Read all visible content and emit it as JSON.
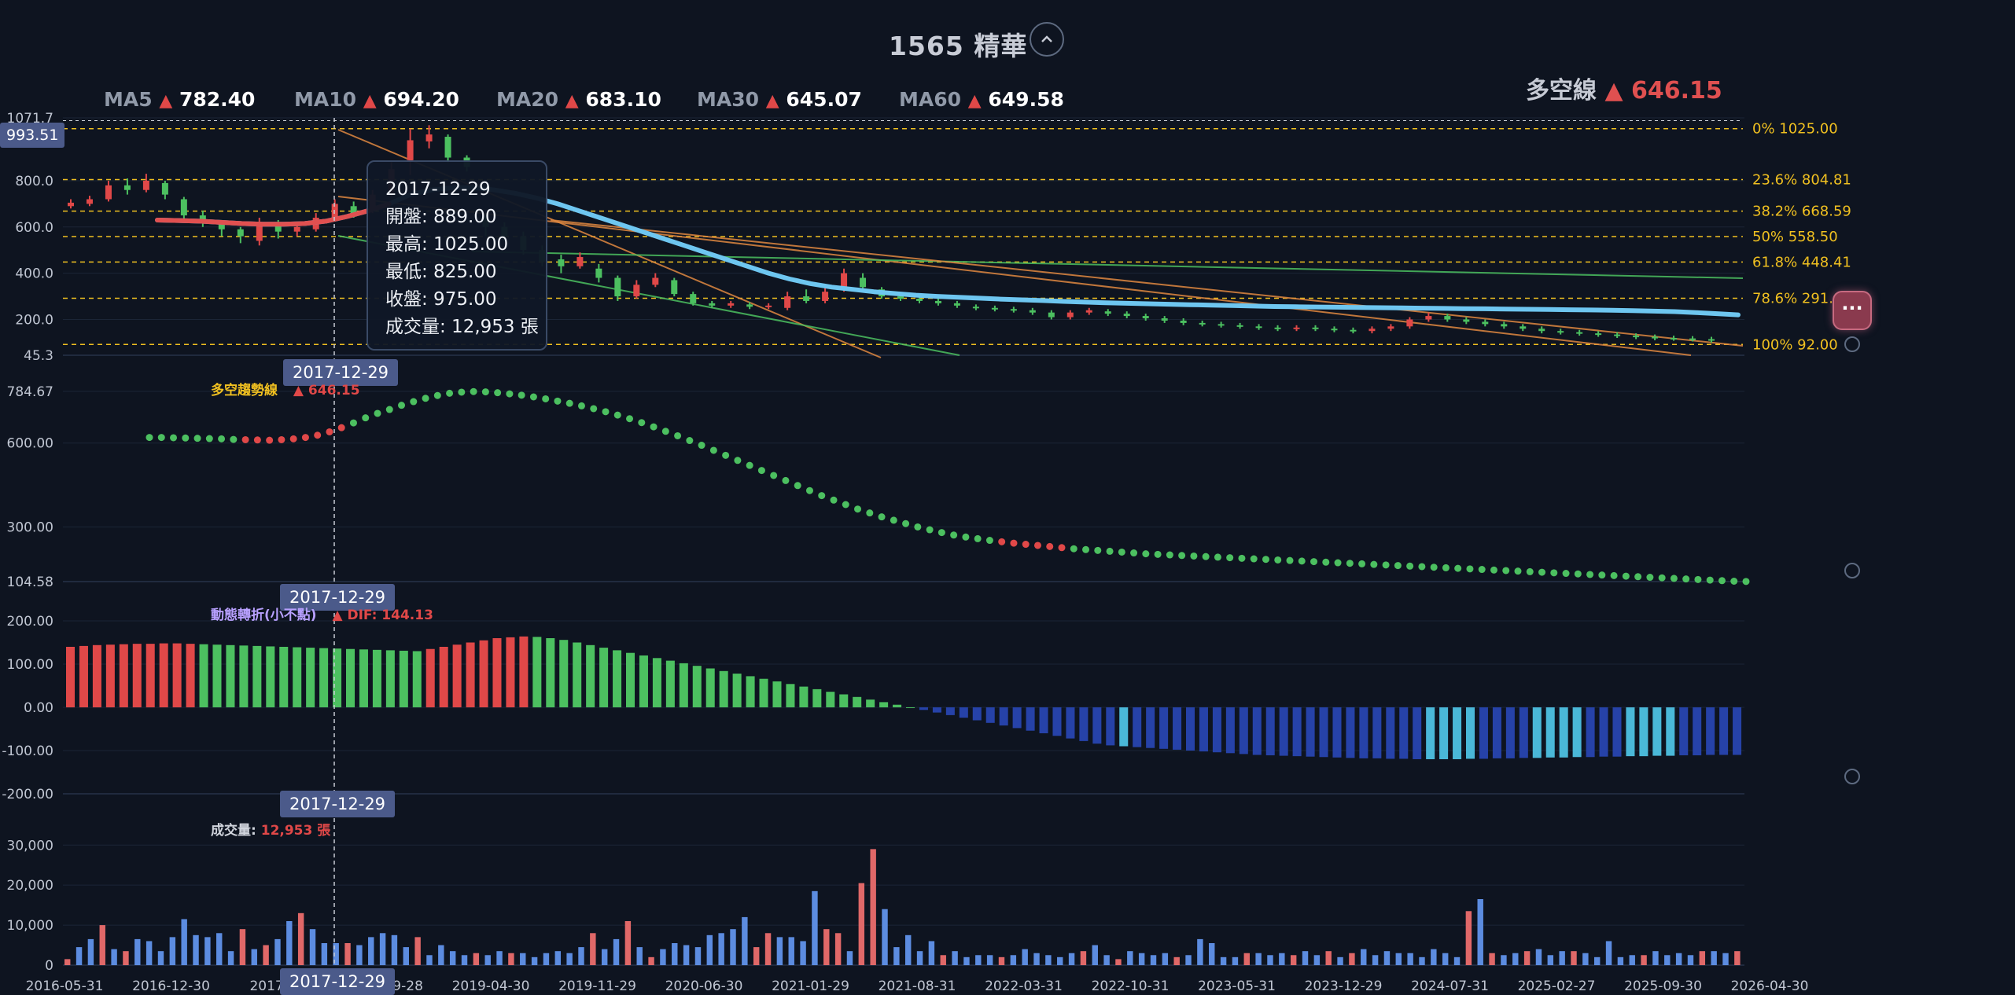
{
  "header": {
    "title": "1565 精華"
  },
  "ma": [
    {
      "name": "MA5",
      "value": "782.40",
      "color": "#e04848"
    },
    {
      "name": "MA10",
      "value": "694.20",
      "color": "#e04848"
    },
    {
      "name": "MA20",
      "value": "683.10",
      "color": "#e04848"
    },
    {
      "name": "MA30",
      "value": "645.07",
      "color": "#e04848"
    },
    {
      "name": "MA60",
      "value": "649.58",
      "color": "#e04848"
    }
  ],
  "bull_bear_line": {
    "label": "多空線",
    "value": "646.15"
  },
  "current_price_tag": "993.51",
  "tooltip": {
    "date": "2017-12-29",
    "open": "開盤: 889.00",
    "high": "最高: 1025.00",
    "low": "最低: 825.00",
    "close": "收盤: 975.00",
    "volume": "成交量: 12,953 張"
  },
  "crosshair_date": "2017-12-29",
  "panels": {
    "trend": {
      "label": "多空趨勢線",
      "value": "646.15"
    },
    "momentum": {
      "label": "動態轉折(小不點)",
      "value": "DIF: 144.13"
    },
    "volume": {
      "label": "成交量:",
      "value": "12,953 張"
    }
  },
  "colors": {
    "up": "#e04848",
    "down": "#4cc060",
    "background": "#0e1420",
    "fib": "#f0c020",
    "ma_line": "#6ec6f0"
  },
  "chart_data": [
    {
      "type": "candlestick",
      "title": "價格",
      "y_ticks": [
        "1071.7",
        "800.0",
        "600.0",
        "400.0",
        "200.0",
        "45.3"
      ],
      "ylim": [
        45.3,
        1071.7
      ],
      "fibonacci": [
        {
          "label": "0%",
          "value": "1025.00"
        },
        {
          "label": "23.6%",
          "value": "804.81"
        },
        {
          "label": "38.2%",
          "value": "668.59"
        },
        {
          "label": "50%",
          "value": "558.50"
        },
        {
          "label": "61.8%",
          "value": "448.41"
        },
        {
          "label": "78.6%",
          "value": "291.88"
        },
        {
          "label": "100%",
          "value": "92.00"
        }
      ],
      "candles": [
        {
          "o": 690,
          "c": 705,
          "h": 720,
          "l": 680
        },
        {
          "o": 700,
          "c": 720,
          "h": 735,
          "l": 690
        },
        {
          "o": 720,
          "c": 780,
          "h": 800,
          "l": 710
        },
        {
          "o": 780,
          "c": 760,
          "h": 810,
          "l": 740
        },
        {
          "o": 760,
          "c": 800,
          "h": 830,
          "l": 750
        },
        {
          "o": 790,
          "c": 740,
          "h": 800,
          "l": 720
        },
        {
          "o": 720,
          "c": 650,
          "h": 730,
          "l": 620
        },
        {
          "o": 650,
          "c": 620,
          "h": 670,
          "l": 600
        },
        {
          "o": 620,
          "c": 590,
          "h": 630,
          "l": 560
        },
        {
          "o": 590,
          "c": 560,
          "h": 600,
          "l": 530
        },
        {
          "o": 540,
          "c": 620,
          "h": 640,
          "l": 520
        },
        {
          "o": 610,
          "c": 580,
          "h": 630,
          "l": 550
        },
        {
          "o": 580,
          "c": 600,
          "h": 620,
          "l": 560
        },
        {
          "o": 590,
          "c": 640,
          "h": 660,
          "l": 580
        },
        {
          "o": 640,
          "c": 700,
          "h": 720,
          "l": 630
        },
        {
          "o": 690,
          "c": 660,
          "h": 710,
          "l": 640
        },
        {
          "o": 670,
          "c": 740,
          "h": 760,
          "l": 660
        },
        {
          "o": 740,
          "c": 850,
          "h": 880,
          "l": 730
        },
        {
          "o": 889,
          "c": 975,
          "h": 1025,
          "l": 825
        },
        {
          "o": 970,
          "c": 1000,
          "h": 1040,
          "l": 940
        },
        {
          "o": 990,
          "c": 900,
          "h": 1000,
          "l": 880
        },
        {
          "o": 900,
          "c": 860,
          "h": 910,
          "l": 840
        }
      ],
      "tail": [
        {
          "o": 640,
          "c": 600,
          "h": 650,
          "l": 560
        },
        {
          "o": 600,
          "c": 560,
          "h": 620,
          "l": 540
        },
        {
          "o": 560,
          "c": 500,
          "h": 580,
          "l": 480
        },
        {
          "o": 500,
          "c": 450,
          "h": 520,
          "l": 430
        },
        {
          "o": 460,
          "c": 430,
          "h": 480,
          "l": 400
        },
        {
          "o": 430,
          "c": 470,
          "h": 490,
          "l": 420
        },
        {
          "o": 420,
          "c": 380,
          "h": 440,
          "l": 360
        },
        {
          "o": 380,
          "c": 300,
          "h": 390,
          "l": 280
        },
        {
          "o": 300,
          "c": 350,
          "h": 370,
          "l": 290
        },
        {
          "o": 350,
          "c": 380,
          "h": 400,
          "l": 340
        },
        {
          "o": 370,
          "c": 310,
          "h": 380,
          "l": 300
        },
        {
          "o": 310,
          "c": 270,
          "h": 320,
          "l": 260
        },
        {
          "o": 270,
          "c": 260,
          "h": 280,
          "l": 250
        },
        {
          "o": 260,
          "c": 270,
          "h": 280,
          "l": 250
        },
        {
          "o": 265,
          "c": 255,
          "h": 275,
          "l": 245
        },
        {
          "o": 255,
          "c": 260,
          "h": 270,
          "l": 245
        },
        {
          "o": 250,
          "c": 300,
          "h": 320,
          "l": 240
        },
        {
          "o": 300,
          "c": 280,
          "h": 330,
          "l": 270
        },
        {
          "o": 280,
          "c": 320,
          "h": 350,
          "l": 270
        },
        {
          "o": 330,
          "c": 400,
          "h": 420,
          "l": 320
        },
        {
          "o": 380,
          "c": 340,
          "h": 400,
          "l": 320
        },
        {
          "o": 330,
          "c": 300,
          "h": 340,
          "l": 290
        },
        {
          "o": 300,
          "c": 290,
          "h": 310,
          "l": 280
        },
        {
          "o": 290,
          "c": 280,
          "h": 300,
          "l": 270
        },
        {
          "o": 280,
          "c": 270,
          "h": 300,
          "l": 260
        },
        {
          "o": 270,
          "c": 260,
          "h": 280,
          "l": 250
        },
        {
          "o": 255,
          "c": 250,
          "h": 265,
          "l": 240
        },
        {
          "o": 250,
          "c": 245,
          "h": 260,
          "l": 235
        },
        {
          "o": 245,
          "c": 240,
          "h": 255,
          "l": 230
        },
        {
          "o": 240,
          "c": 230,
          "h": 250,
          "l": 220
        },
        {
          "o": 230,
          "c": 210,
          "h": 240,
          "l": 200
        },
        {
          "o": 210,
          "c": 230,
          "h": 240,
          "l": 200
        },
        {
          "o": 230,
          "c": 240,
          "h": 250,
          "l": 220
        },
        {
          "o": 235,
          "c": 225,
          "h": 245,
          "l": 215
        },
        {
          "o": 225,
          "c": 215,
          "h": 235,
          "l": 205
        },
        {
          "o": 215,
          "c": 205,
          "h": 225,
          "l": 195
        },
        {
          "o": 205,
          "c": 195,
          "h": 215,
          "l": 185
        },
        {
          "o": 195,
          "c": 185,
          "h": 205,
          "l": 175
        },
        {
          "o": 185,
          "c": 180,
          "h": 195,
          "l": 170
        },
        {
          "o": 180,
          "c": 175,
          "h": 190,
          "l": 165
        },
        {
          "o": 175,
          "c": 170,
          "h": 185,
          "l": 160
        },
        {
          "o": 170,
          "c": 165,
          "h": 180,
          "l": 155
        },
        {
          "o": 165,
          "c": 160,
          "h": 175,
          "l": 150
        },
        {
          "o": 160,
          "c": 165,
          "h": 175,
          "l": 150
        },
        {
          "o": 165,
          "c": 160,
          "h": 175,
          "l": 150
        },
        {
          "o": 160,
          "c": 155,
          "h": 170,
          "l": 145
        },
        {
          "o": 155,
          "c": 150,
          "h": 165,
          "l": 140
        },
        {
          "o": 150,
          "c": 160,
          "h": 170,
          "l": 140
        },
        {
          "o": 160,
          "c": 170,
          "h": 180,
          "l": 150
        },
        {
          "o": 170,
          "c": 200,
          "h": 210,
          "l": 160
        },
        {
          "o": 200,
          "c": 215,
          "h": 230,
          "l": 190
        },
        {
          "o": 215,
          "c": 200,
          "h": 225,
          "l": 190
        },
        {
          "o": 200,
          "c": 190,
          "h": 210,
          "l": 180
        },
        {
          "o": 190,
          "c": 180,
          "h": 200,
          "l": 170
        },
        {
          "o": 180,
          "c": 170,
          "h": 190,
          "l": 160
        },
        {
          "o": 170,
          "c": 160,
          "h": 180,
          "l": 150
        },
        {
          "o": 160,
          "c": 150,
          "h": 170,
          "l": 140
        },
        {
          "o": 150,
          "c": 145,
          "h": 160,
          "l": 135
        },
        {
          "o": 145,
          "c": 140,
          "h": 155,
          "l": 130
        },
        {
          "o": 140,
          "c": 135,
          "h": 150,
          "l": 125
        },
        {
          "o": 135,
          "c": 130,
          "h": 145,
          "l": 120
        },
        {
          "o": 130,
          "c": 125,
          "h": 140,
          "l": 115
        },
        {
          "o": 125,
          "c": 120,
          "h": 135,
          "l": 110
        },
        {
          "o": 120,
          "c": 118,
          "h": 130,
          "l": 108
        },
        {
          "o": 118,
          "c": 115,
          "h": 128,
          "l": 105
        },
        {
          "o": 115,
          "c": 112,
          "h": 125,
          "l": 100
        }
      ]
    },
    {
      "type": "scatter",
      "title": "多空趨勢線",
      "y_ticks": [
        "784.67",
        "600.00",
        "300.00",
        "104.58"
      ],
      "ylim": [
        104.58,
        784.67
      ],
      "points": [
        620,
        620,
        619,
        618,
        617,
        616,
        615,
        613,
        612,
        611,
        610,
        612,
        615,
        620,
        628,
        640,
        655,
        672,
        690,
        706,
        720,
        735,
        748,
        760,
        770,
        778,
        782,
        784,
        783,
        780,
        776,
        771,
        765,
        758,
        750,
        742,
        733,
        723,
        712,
        700,
        687,
        673,
        658,
        642,
        626,
        609,
        592,
        574,
        556,
        538,
        520,
        502,
        484,
        466,
        448,
        430,
        412,
        396,
        380,
        364,
        350,
        336,
        324,
        312,
        300,
        290,
        280,
        271,
        264,
        258,
        252,
        247,
        242,
        238,
        234,
        230,
        226,
        222,
        219,
        216,
        213,
        210,
        207,
        204,
        202,
        200,
        198,
        196,
        194,
        192,
        190,
        188,
        186,
        184,
        182,
        180,
        178,
        176,
        174,
        172,
        170,
        168,
        166,
        164,
        162,
        160,
        158,
        156,
        154,
        152,
        150,
        148,
        146,
        144,
        142,
        140,
        138,
        136,
        134,
        132,
        130,
        128,
        126,
        124,
        122,
        120,
        118,
        116,
        114,
        112,
        110,
        108,
        106,
        105
      ],
      "red_ranges": [
        [
          8,
          16
        ],
        [
          71,
          76
        ]
      ]
    },
    {
      "type": "bar",
      "title": "動態轉折(小不點)",
      "y_ticks": [
        "200.00",
        "100.00",
        "0.00",
        "-100.00",
        "-200.00"
      ],
      "ylim": [
        -200,
        200
      ],
      "values": [
        140,
        142,
        144,
        145,
        146,
        147,
        147,
        148,
        148,
        147,
        146,
        145,
        144,
        143,
        142,
        141,
        140,
        139,
        138,
        137,
        136,
        135,
        134,
        133,
        132,
        131,
        130,
        135,
        140,
        145,
        150,
        155,
        160,
        162,
        164,
        163,
        160,
        156,
        150,
        144,
        138,
        132,
        126,
        120,
        114,
        108,
        102,
        96,
        90,
        84,
        78,
        72,
        66,
        60,
        54,
        48,
        42,
        36,
        30,
        24,
        18,
        12,
        6,
        0,
        -6,
        -12,
        -18,
        -24,
        -30,
        -36,
        -42,
        -48,
        -54,
        -60,
        -66,
        -72,
        -78,
        -84,
        -88,
        -90,
        -92,
        -94,
        -96,
        -98,
        -100,
        -102,
        -104,
        -106,
        -108,
        -110,
        -111,
        -112,
        -113,
        -114,
        -115,
        -116,
        -117,
        -118,
        -118,
        -119,
        -119,
        -120,
        -120,
        -120,
        -120,
        -119,
        -119,
        -118,
        -118,
        -117,
        -117,
        -116,
        -116,
        -115,
        -115,
        -114,
        -114,
        -113,
        -113,
        -112,
        -112,
        -111,
        -111,
        -110,
        -110,
        -110
      ]
    },
    {
      "type": "bar",
      "title": "成交量",
      "y_ticks": [
        "30,000",
        "20,000",
        "10,000",
        "0"
      ],
      "ylim": [
        0,
        33000
      ],
      "x_ticks": [
        "2016-05-31",
        "2016-12-30",
        "2017-07",
        "2018-09-28",
        "2019-04-30",
        "2019-11-29",
        "2020-06-30",
        "2021-01-29",
        "2021-08-31",
        "2022-03-31",
        "2022-10-31",
        "2023-05-31",
        "2023-12-29",
        "2024-07-31",
        "2025-02-27",
        "2025-09-30",
        "2026-04-30"
      ],
      "values": [
        1500,
        4500,
        6500,
        10000,
        4000,
        3500,
        6500,
        6000,
        3500,
        7000,
        11500,
        7500,
        7000,
        8000,
        3500,
        9000,
        4000,
        5000,
        6500,
        11000,
        13000,
        9000,
        5500,
        5500,
        5500,
        5000,
        7000,
        8000,
        7500,
        4500,
        7000,
        2500,
        5000,
        3500,
        2500,
        3000,
        2500,
        3500,
        3000,
        3000,
        2000,
        3000,
        3500,
        3000,
        4500,
        8000,
        4000,
        6500,
        11000,
        4500,
        2000,
        4000,
        5500,
        5000,
        4500,
        7500,
        8000,
        9000,
        12000,
        4500,
        8000,
        7000,
        7000,
        6000,
        18500,
        9000,
        8000,
        3500,
        20500,
        29000,
        14000,
        4500,
        7500,
        3500,
        6000,
        2500,
        3500,
        2000,
        2500,
        2500,
        2000,
        2500,
        4000,
        3000,
        2500,
        2000,
        3000,
        3500,
        5000,
        2500,
        1500,
        3500,
        3000,
        2500,
        3000,
        2000,
        2500,
        6500,
        5500,
        2000,
        2000,
        3000,
        3000,
        2500,
        3000,
        2500,
        3500,
        2500,
        3500,
        2000,
        3000,
        4000,
        2500,
        3500,
        3000,
        3000,
        2000,
        4000,
        3000,
        2000,
        13500,
        16500,
        3000,
        2500,
        3000,
        3500,
        4000,
        2500,
        3500,
        3500,
        3000,
        2000,
        6000,
        2000,
        2500,
        2500,
        3500,
        2500,
        3000,
        2500,
        3500,
        3500,
        3000,
        3500
      ]
    }
  ]
}
